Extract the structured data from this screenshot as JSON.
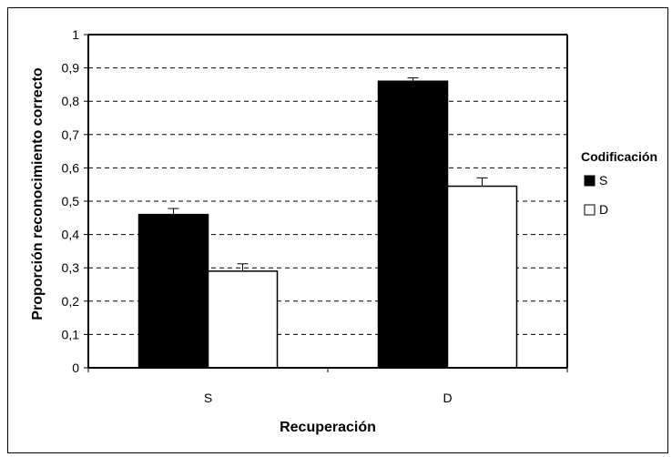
{
  "chart_data": {
    "type": "bar",
    "title": "",
    "xlabel": "Recuperación",
    "ylabel": "Proporción reconocimiento correcto",
    "categories": [
      "S",
      "D"
    ],
    "ylim": [
      0,
      1
    ],
    "yticks": [
      "0",
      "0,1",
      "0,2",
      "0,3",
      "0,4",
      "0,5",
      "0,6",
      "0,7",
      "0,8",
      "0,9",
      "1"
    ],
    "grid": true,
    "legend": {
      "title": "Codificación",
      "placement": "right"
    },
    "series": [
      {
        "name": "S",
        "values": [
          0.46,
          0.86
        ],
        "errors": [
          0.018,
          0.01
        ],
        "color": "#000000"
      },
      {
        "name": "D",
        "values": [
          0.29,
          0.545
        ],
        "errors": [
          0.022,
          0.025
        ],
        "color": "#ffffff"
      }
    ]
  }
}
